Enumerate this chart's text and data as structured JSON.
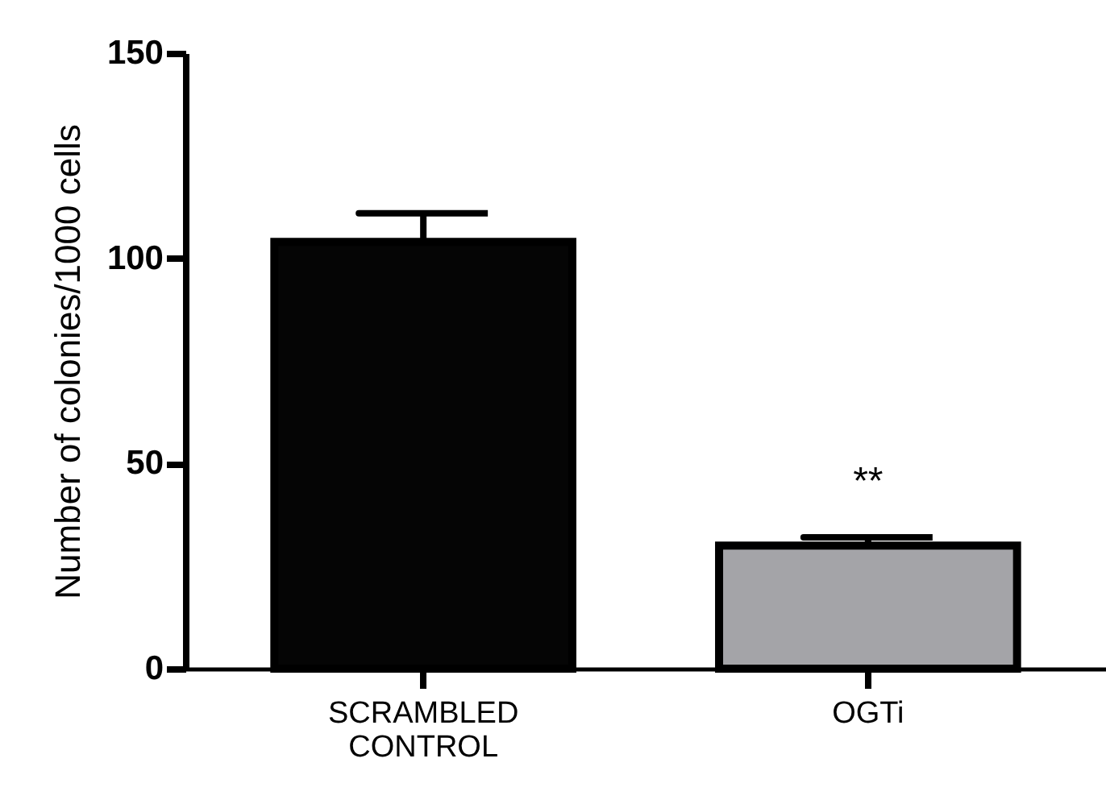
{
  "chart_data": {
    "type": "bar",
    "ylabel": "Number of colonies/1000 cells",
    "categories": [
      "SCRAMBLED CONTROL",
      "OGTi"
    ],
    "values": [
      104,
      30
    ],
    "colors": [
      "#050505",
      "#a4a4a8"
    ],
    "errors": [
      7,
      2
    ],
    "ylim": [
      0,
      150
    ],
    "yticks": [
      0,
      50,
      100,
      150
    ],
    "annotations": [
      {
        "text": "**",
        "x": "OGTi",
        "y": 32
      }
    ]
  }
}
